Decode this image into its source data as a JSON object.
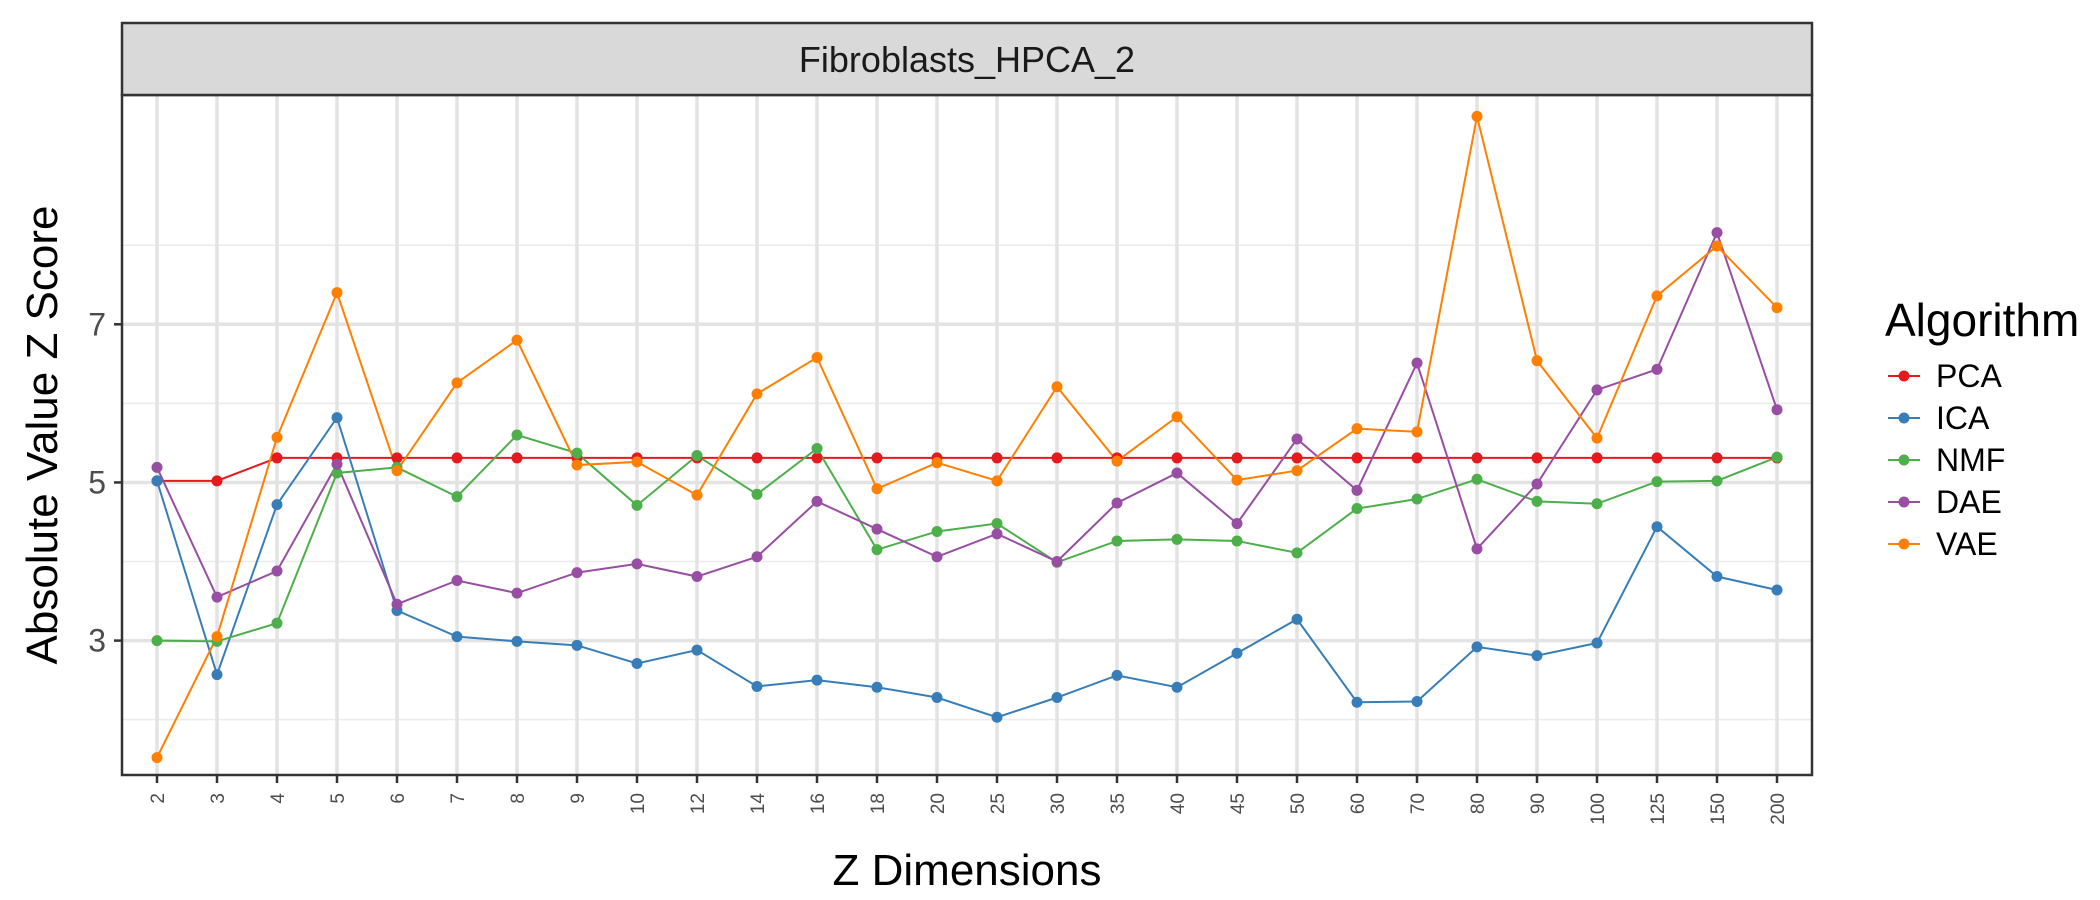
{
  "chart_data": {
    "type": "line",
    "facet_title": "Fibroblasts_HPCA_2",
    "xlabel": "Z Dimensions",
    "ylabel": "Absolute Value Z Score",
    "categories": [
      "2",
      "3",
      "4",
      "5",
      "6",
      "7",
      "8",
      "9",
      "10",
      "12",
      "14",
      "16",
      "18",
      "20",
      "25",
      "30",
      "35",
      "40",
      "45",
      "50",
      "60",
      "70",
      "80",
      "90",
      "100",
      "125",
      "150",
      "200"
    ],
    "ylim": [
      1.3,
      9.9
    ],
    "yticks": [
      3,
      5,
      7
    ],
    "grid": true,
    "legend": {
      "title": "Algorithm",
      "position": "right"
    },
    "series": [
      {
        "name": "PCA",
        "color": "#E41A1C",
        "values": [
          5.02,
          5.02,
          5.31,
          5.31,
          5.31,
          5.31,
          5.31,
          5.31,
          5.31,
          5.31,
          5.31,
          5.31,
          5.31,
          5.31,
          5.31,
          5.31,
          5.31,
          5.31,
          5.31,
          5.31,
          5.31,
          5.31,
          5.31,
          5.31,
          5.31,
          5.31,
          5.31,
          5.31
        ]
      },
      {
        "name": "ICA",
        "color": "#377EB8",
        "values": [
          5.02,
          2.57,
          4.72,
          5.82,
          3.38,
          3.05,
          2.99,
          2.94,
          2.71,
          2.88,
          2.42,
          2.5,
          2.41,
          2.28,
          2.03,
          2.28,
          2.56,
          2.41,
          2.84,
          3.27,
          2.22,
          2.23,
          2.92,
          2.81,
          2.97,
          4.44,
          3.81,
          3.64
        ]
      },
      {
        "name": "NMF",
        "color": "#4DAF4A",
        "values": [
          3.0,
          2.99,
          3.22,
          5.12,
          5.19,
          4.82,
          5.6,
          5.37,
          4.71,
          5.34,
          4.85,
          5.43,
          4.15,
          4.38,
          4.48,
          3.99,
          4.26,
          4.28,
          4.26,
          4.11,
          4.67,
          4.79,
          5.04,
          4.76,
          4.73,
          5.01,
          5.02,
          5.32
        ]
      },
      {
        "name": "DAE",
        "color": "#984EA3",
        "values": [
          5.19,
          3.55,
          3.88,
          5.23,
          3.46,
          3.76,
          3.6,
          3.86,
          3.97,
          3.81,
          4.06,
          4.76,
          4.41,
          4.06,
          4.35,
          4.0,
          4.74,
          5.12,
          4.48,
          5.55,
          4.9,
          6.51,
          4.16,
          4.98,
          6.17,
          6.43,
          8.16,
          5.92
        ]
      },
      {
        "name": "VAE",
        "color": "#FF7F00",
        "values": [
          1.52,
          3.05,
          5.57,
          7.4,
          5.15,
          6.26,
          6.8,
          5.22,
          5.26,
          4.84,
          6.12,
          6.58,
          4.92,
          5.25,
          5.02,
          6.21,
          5.27,
          5.83,
          5.03,
          5.15,
          5.68,
          5.64,
          9.63,
          6.54,
          5.56,
          7.36,
          7.99,
          7.21
        ]
      }
    ]
  }
}
